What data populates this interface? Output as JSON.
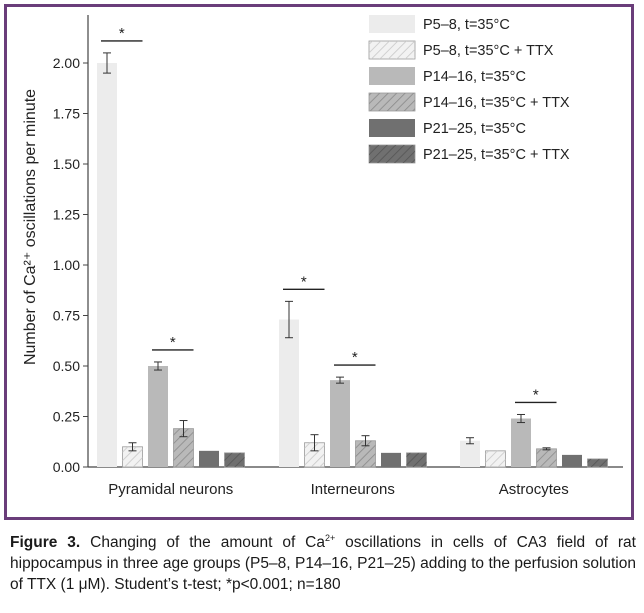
{
  "chart_data": {
    "type": "bar",
    "categories": [
      "Pyramidal neurons",
      "Interneurons",
      "Astrocytes"
    ],
    "ylabel": "Number of Ca²⁺ oscillations per minute",
    "ylim": [
      0,
      2.2
    ],
    "yticks": [
      "0.00",
      "0.25",
      "0.50",
      "0.75",
      "1.00",
      "1.25",
      "1.50",
      "1.75",
      "2.00"
    ],
    "legend_position": "top-right",
    "series": [
      {
        "name": "P5–8, t=35°C",
        "color": "#ececec",
        "hatch": false,
        "values": [
          2.0,
          0.73,
          0.13
        ],
        "errors": [
          0.05,
          0.09,
          0.015
        ]
      },
      {
        "name": "P5–8, t=35°C + TTX",
        "color": "#f2f2f2",
        "hatch": true,
        "values": [
          0.1,
          0.12,
          0.08
        ],
        "errors": [
          0.02,
          0.04,
          0.0
        ]
      },
      {
        "name": "P14–16, t=35°C",
        "color": "#b9b9b9",
        "hatch": false,
        "values": [
          0.5,
          0.43,
          0.24
        ],
        "errors": [
          0.02,
          0.015,
          0.02
        ]
      },
      {
        "name": "P14–16, t=35°C + TTX",
        "color": "#b9b9b9",
        "hatch": true,
        "values": [
          0.19,
          0.13,
          0.09
        ],
        "errors": [
          0.04,
          0.025,
          0.005
        ]
      },
      {
        "name": "P21–25, t=35°C",
        "color": "#707070",
        "hatch": false,
        "values": [
          0.08,
          0.07,
          0.06
        ],
        "errors": [
          0.0,
          0.0,
          0.0
        ]
      },
      {
        "name": "P21–25, t=35°C + TTX",
        "color": "#707070",
        "hatch": true,
        "values": [
          0.07,
          0.07,
          0.04
        ],
        "errors": [
          0.0,
          0.0,
          0.0
        ]
      }
    ],
    "significance": [
      {
        "category": 0,
        "series_pair": [
          0,
          1
        ],
        "label": "*"
      },
      {
        "category": 0,
        "series_pair": [
          2,
          3
        ],
        "label": "*"
      },
      {
        "category": 1,
        "series_pair": [
          0,
          1
        ],
        "label": "*"
      },
      {
        "category": 1,
        "series_pair": [
          2,
          3
        ],
        "label": "*"
      },
      {
        "category": 2,
        "series_pair": [
          2,
          3
        ],
        "label": "*"
      }
    ]
  },
  "caption": {
    "label": "Figure 3.",
    "text_part1": " Changing of the amount of Ca",
    "sup": "2+",
    "text_part2": " oscillations in cells of CA3 field of rat hippocampus in three age groups (P5–8, P14–16, P21–25) adding to the perfusion solution of TTX (1 μM). Student’s t-test; *p<0.001; n=180"
  },
  "colors": {
    "frame": "#6a3d7a",
    "axis": "#444444"
  }
}
